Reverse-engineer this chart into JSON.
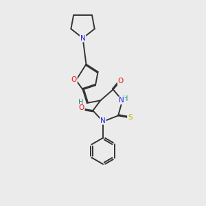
{
  "bg_color": "#ebebeb",
  "bond_color": "#333333",
  "atom_colors": {
    "O": "#ee1111",
    "N": "#2222ee",
    "S": "#bbbb00",
    "H": "#118888",
    "C": "#333333"
  }
}
